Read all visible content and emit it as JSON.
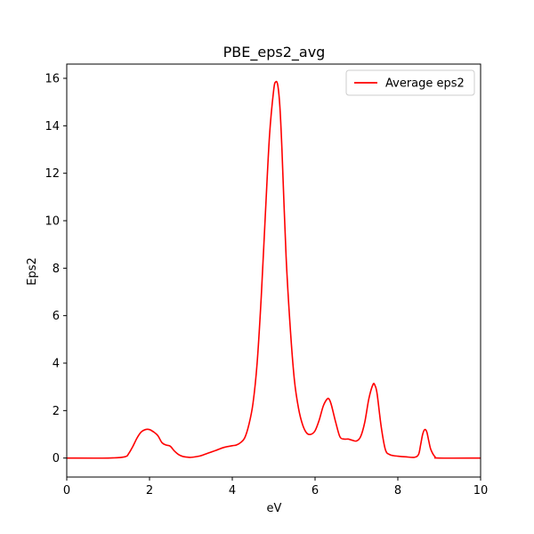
{
  "chart_data": {
    "type": "line",
    "title": "PBE_eps2_avg",
    "xlabel": "eV",
    "ylabel": "Eps2",
    "xlim": [
      0,
      10
    ],
    "ylim": [
      -0.8,
      16.6
    ],
    "xticks": [
      "0",
      "2",
      "4",
      "6",
      "8",
      "10"
    ],
    "yticks": [
      "0",
      "2",
      "4",
      "6",
      "8",
      "10",
      "12",
      "14",
      "16"
    ],
    "grid": false,
    "legend_position": "top-right",
    "series": [
      {
        "name": "Average eps2",
        "color": "#ff0000",
        "x": [
          0,
          1.0,
          1.4,
          1.5,
          1.6,
          1.7,
          1.8,
          1.9,
          2.0,
          2.1,
          2.2,
          2.3,
          2.4,
          2.5,
          2.6,
          2.7,
          2.8,
          2.9,
          3.0,
          3.2,
          3.4,
          3.6,
          3.8,
          4.0,
          4.1,
          4.2,
          4.3,
          4.4,
          4.5,
          4.6,
          4.7,
          4.8,
          4.9,
          5.0,
          5.05,
          5.1,
          5.15,
          5.2,
          5.3,
          5.4,
          5.5,
          5.6,
          5.7,
          5.8,
          5.9,
          6.0,
          6.1,
          6.2,
          6.3,
          6.35,
          6.4,
          6.5,
          6.6,
          6.7,
          6.8,
          6.9,
          7.0,
          7.1,
          7.2,
          7.3,
          7.4,
          7.45,
          7.5,
          7.6,
          7.7,
          7.8,
          7.9,
          8.0,
          8.2,
          8.4,
          8.5,
          8.55,
          8.6,
          8.65,
          8.7,
          8.75,
          8.8,
          8.9,
          9.0,
          10.0
        ],
        "y": [
          0.0,
          0.0,
          0.05,
          0.2,
          0.5,
          0.85,
          1.1,
          1.2,
          1.2,
          1.1,
          0.95,
          0.65,
          0.55,
          0.5,
          0.3,
          0.15,
          0.07,
          0.04,
          0.03,
          0.08,
          0.2,
          0.32,
          0.45,
          0.52,
          0.55,
          0.65,
          0.85,
          1.4,
          2.3,
          4.0,
          6.8,
          10.3,
          13.6,
          15.5,
          15.85,
          15.7,
          14.8,
          13.0,
          8.5,
          5.5,
          3.3,
          2.1,
          1.4,
          1.05,
          1.0,
          1.15,
          1.6,
          2.2,
          2.5,
          2.45,
          2.2,
          1.5,
          0.9,
          0.8,
          0.8,
          0.75,
          0.72,
          0.9,
          1.5,
          2.5,
          3.1,
          3.05,
          2.7,
          1.3,
          0.35,
          0.15,
          0.1,
          0.08,
          0.05,
          0.03,
          0.15,
          0.55,
          1.0,
          1.2,
          1.1,
          0.7,
          0.35,
          0.05,
          0.0,
          0.0
        ]
      }
    ]
  }
}
